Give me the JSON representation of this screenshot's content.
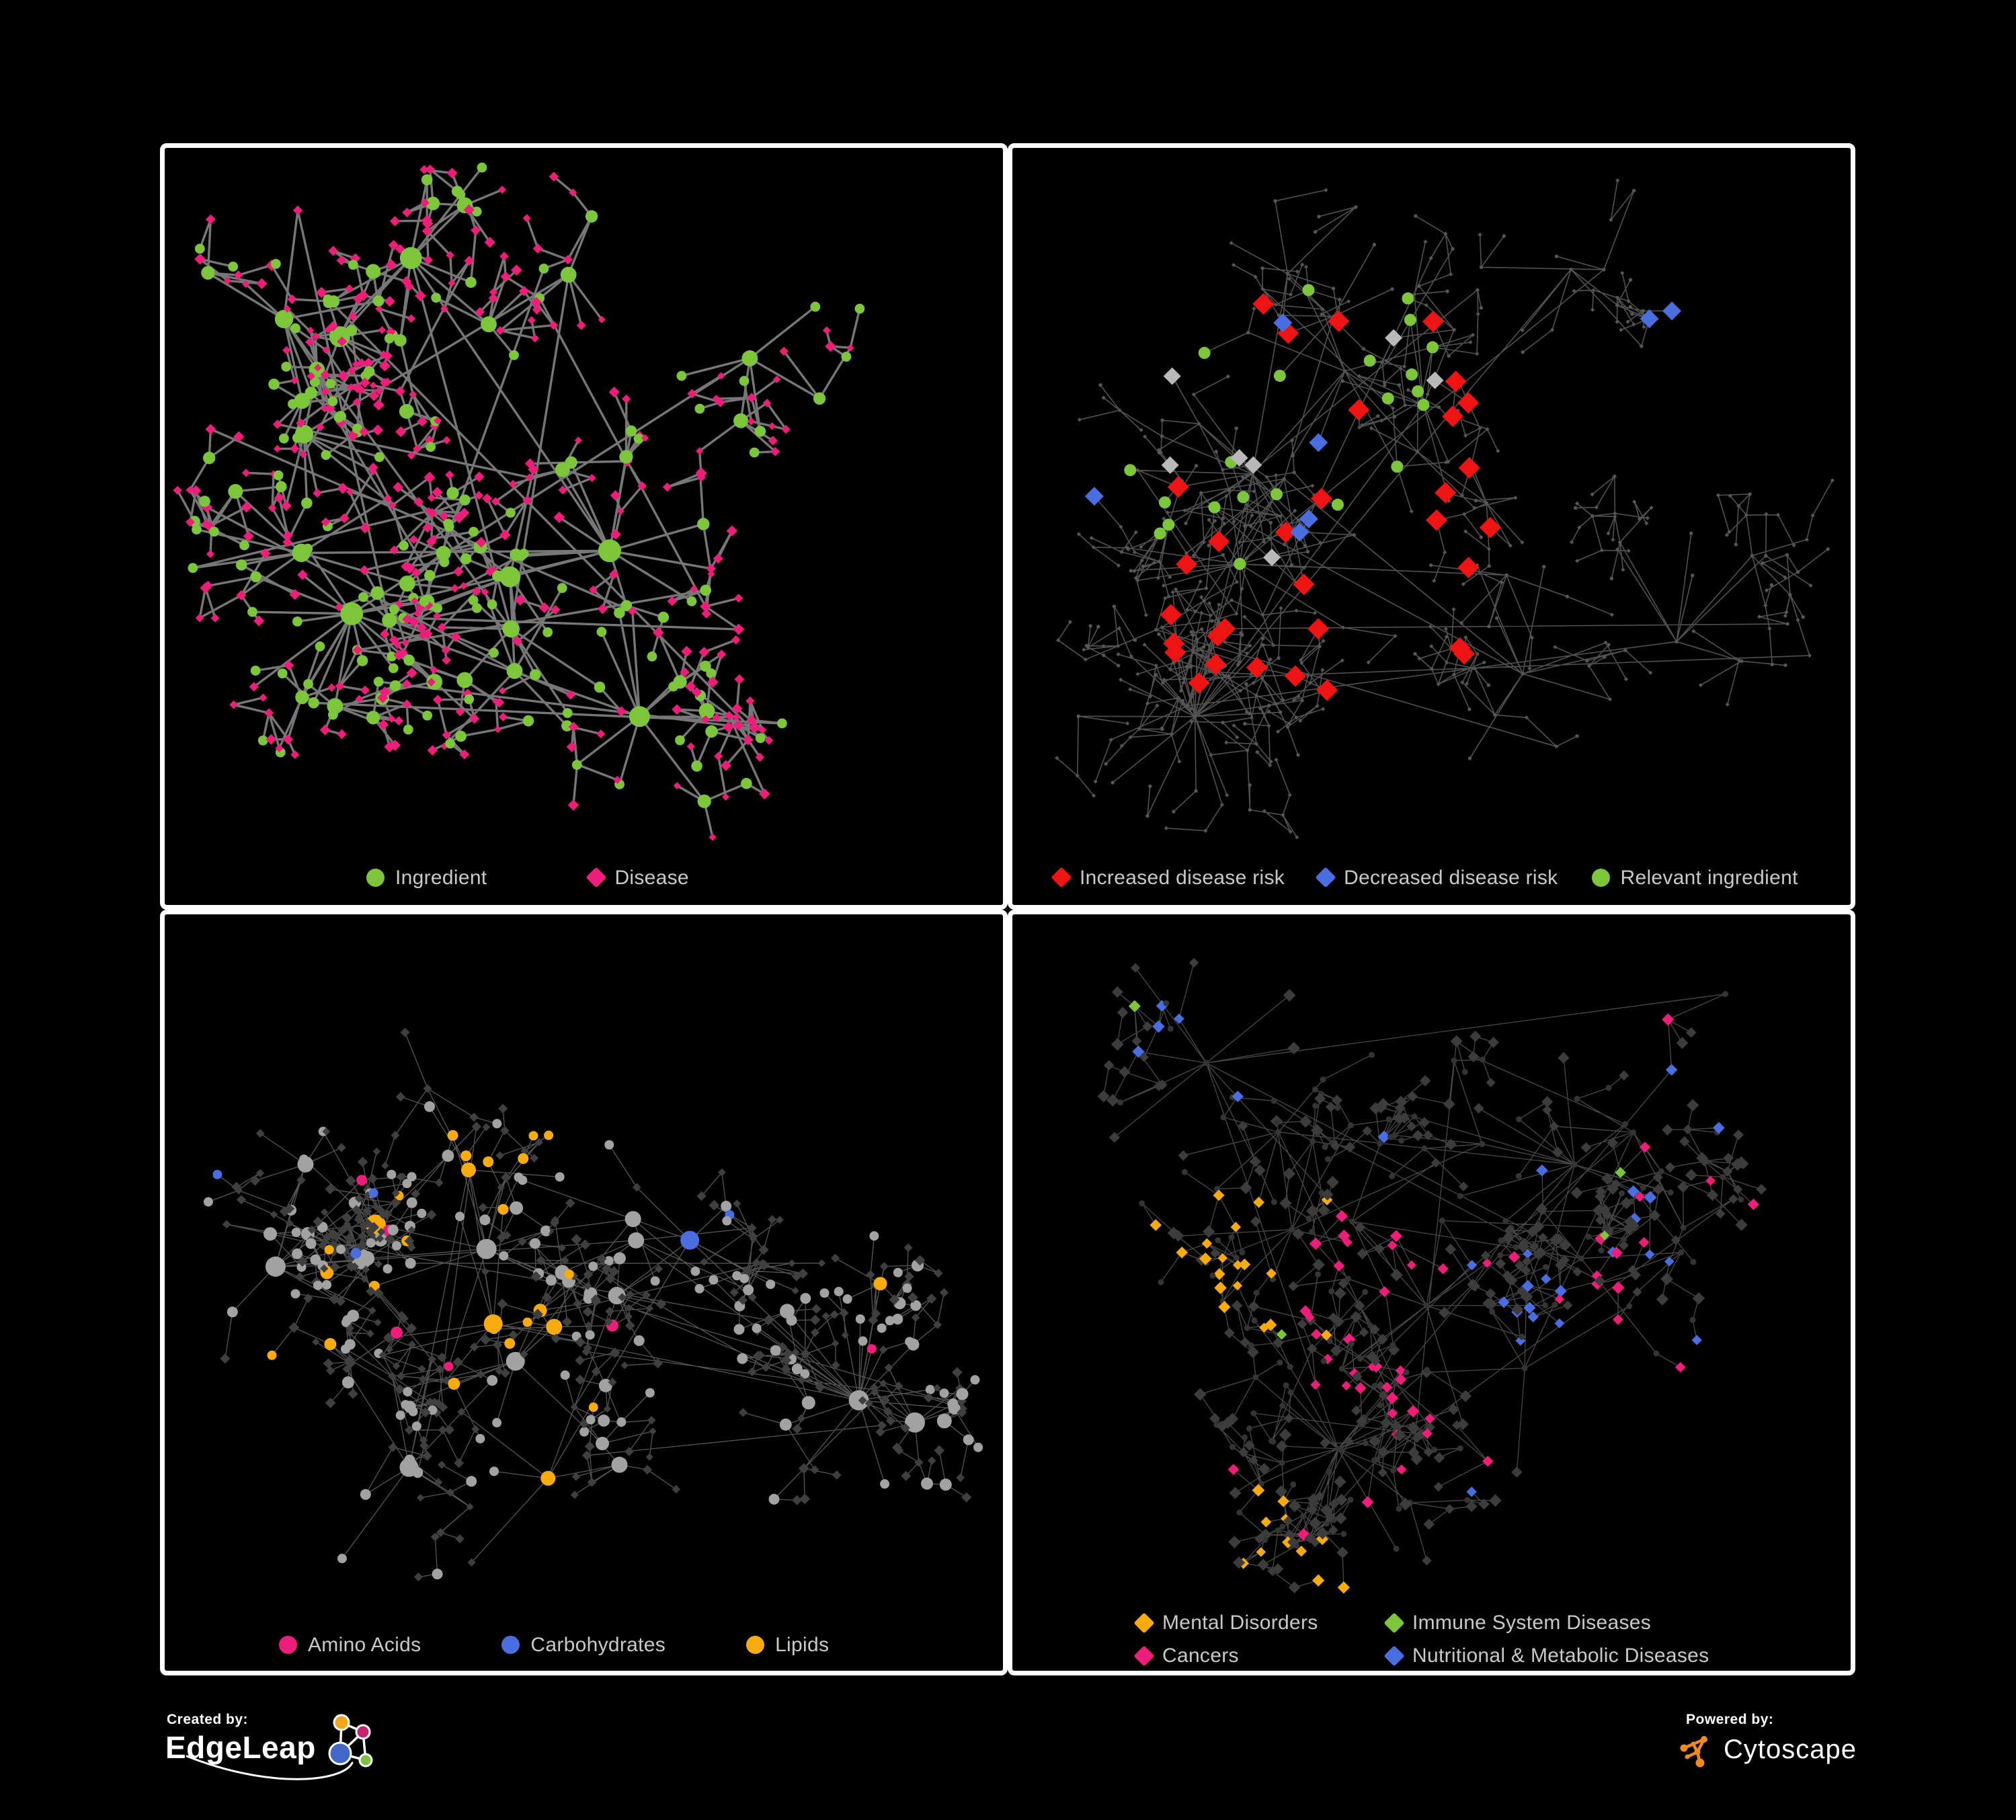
{
  "figure": {
    "background": "#000000",
    "border_color": "#FFFFFF",
    "label_color": "#C9C9C9"
  },
  "panels": [
    {
      "id": "ingredient-disease",
      "legend": [
        {
          "label": "Ingredient",
          "shape": "circle",
          "color": "#7DC53A"
        },
        {
          "label": "Disease",
          "shape": "diamond",
          "color": "#EC1E79"
        }
      ]
    },
    {
      "id": "disease-risk",
      "legend": [
        {
          "label": "Increased disease risk",
          "shape": "diamond",
          "color": "#EE1414"
        },
        {
          "label": "Decreased disease risk",
          "shape": "diamond",
          "color": "#4A6EE0"
        },
        {
          "label": "Relevant ingredient",
          "shape": "circle",
          "color": "#7DC53A"
        }
      ]
    },
    {
      "id": "nutrient-classes",
      "legend": [
        {
          "label": "Amino Acids",
          "shape": "circle",
          "color": "#EC1E79"
        },
        {
          "label": "Carbohydrates",
          "shape": "circle",
          "color": "#4A6EE0"
        },
        {
          "label": "Lipids",
          "shape": "circle",
          "color": "#F7AB0F"
        }
      ]
    },
    {
      "id": "disease-classes",
      "legend": [
        {
          "label": "Mental Disorders",
          "shape": "diamond",
          "color": "#F7AB0F"
        },
        {
          "label": "Immune System Diseases",
          "shape": "diamond",
          "color": "#7DC53A"
        },
        {
          "label": "Cancers",
          "shape": "diamond",
          "color": "#EC1E79"
        },
        {
          "label": "Nutritional & Metabolic Diseases",
          "shape": "diamond",
          "color": "#4A6EE0"
        }
      ]
    }
  ],
  "footer": {
    "created_by": "Created by:",
    "edgeleap": "EdgeLeap",
    "powered_by": "Powered by:",
    "cytoscape": "Cytoscape",
    "edgeleap_colors": {
      "gold": "#F2A71C",
      "pink": "#C62370",
      "blue": "#4468C8",
      "green": "#7CC142"
    },
    "cytoscape_orange": "#EF8B1F"
  },
  "network_config": [
    {
      "seed": 101,
      "count": 540,
      "hubs": 12,
      "cross": 16,
      "diamondShare": 0.62,
      "edge": {
        "color": "#7D7D7D",
        "width": 3.4,
        "opacity": 0.95
      },
      "circle": {
        "rBase": 6.5,
        "rDeg": 0.9,
        "rMax": 17
      },
      "diamond": {
        "halfMin": 5.5,
        "halfJitter": 3
      }
    },
    {
      "seed": 202,
      "count": 600,
      "hubs": 16,
      "cross": 10,
      "diamondShare": 0.62,
      "baseColor": "#565656",
      "edge": {
        "color": "#5A5A5A",
        "width": 1.6,
        "opacity": 0.9
      },
      "hl": {
        "red": {
          "count": 32,
          "half": 16
        },
        "blue": {
          "count": 7,
          "half": 14
        },
        "silver": {
          "count": 7,
          "half": 13,
          "color": "#B9B9B9"
        },
        "green": {
          "count": 22,
          "r": 9
        }
      }
    },
    {
      "seed": 303,
      "count": 540,
      "hubs": 12,
      "cross": 12,
      "diamondShare": 0.6,
      "edge": {
        "color": "#9B9B9B",
        "width": 1.3,
        "opacity": 0.55
      },
      "circle": {
        "fill": "#A2A2A2",
        "rBase": 6,
        "rDeg": 1.0,
        "rMax": 15
      },
      "diamond": {
        "fill": "#3F3F3F",
        "halfMin": 5.5,
        "halfJitter": 2.5
      }
    },
    {
      "seed": 404,
      "count": 540,
      "hubs": 13,
      "cross": 12,
      "diamondShare": 0.66,
      "edge": {
        "color": "#8F8F8F",
        "width": 1.3,
        "opacity": 0.5
      },
      "circle": {
        "fill": "#343434",
        "r": 4.5
      },
      "diamond": {
        "fill": "#3C3C3C",
        "halfMin": 7,
        "halfJitter": 2.5
      }
    }
  ]
}
